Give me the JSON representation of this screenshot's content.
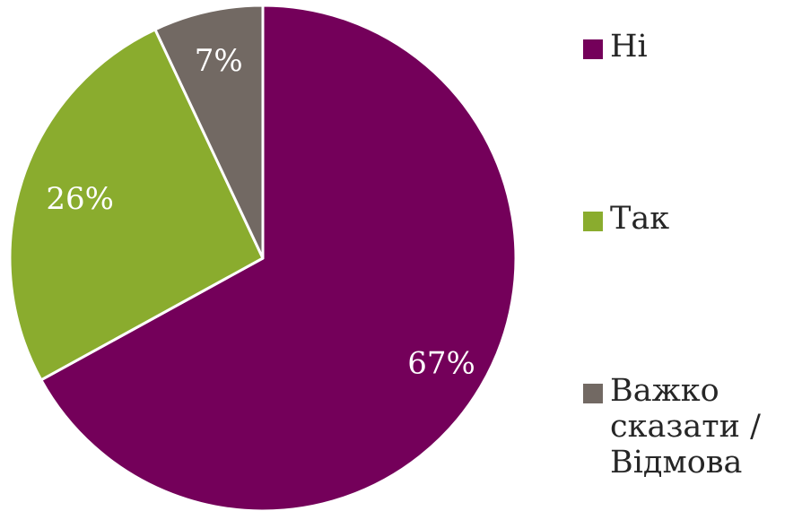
{
  "chart_data": {
    "type": "pie",
    "title": "",
    "slices": [
      {
        "label": "Ні",
        "value": 67,
        "value_label": "67%",
        "color": "#74005A"
      },
      {
        "label": "Так",
        "value": 26,
        "value_label": "26%",
        "color": "#8AAC2E"
      },
      {
        "label": "Важко сказати / Відмова",
        "value": 7,
        "value_label": "7%",
        "color": "#726963"
      }
    ],
    "start_angle": "12 o'clock",
    "direction": "clockwise",
    "legend_position": "right",
    "legend": [
      {
        "label": "Ні",
        "color": "#74005A"
      },
      {
        "label": "Так",
        "color": "#8AAC2E"
      },
      {
        "label": "Важко\nсказати /\nВідмова",
        "color": "#726963"
      }
    ]
  }
}
